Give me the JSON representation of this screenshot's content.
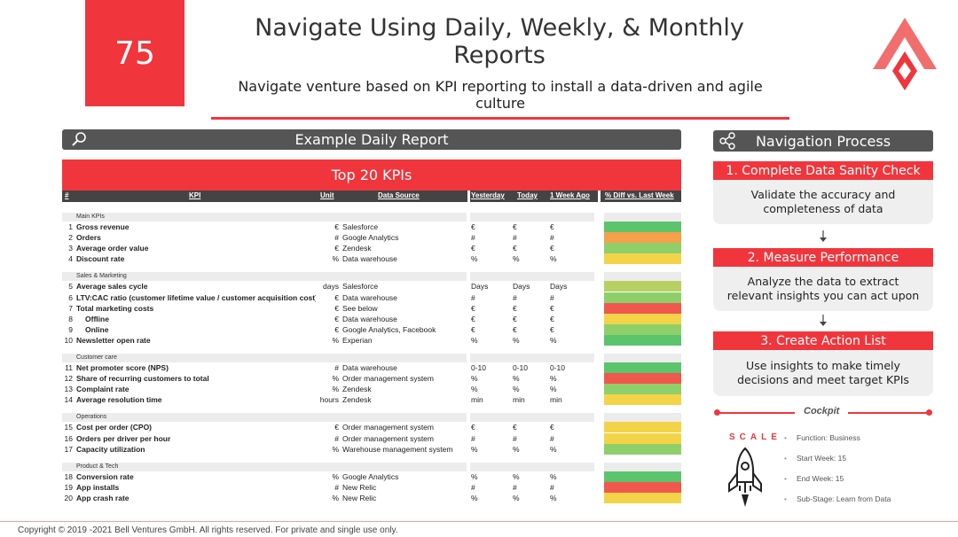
{
  "page": {
    "number": "75",
    "title": "Navigate Using Daily, Weekly, & Monthly Reports",
    "subtitle": "Navigate venture based on KPI reporting to install a data-driven and agile culture"
  },
  "report": {
    "title": "Example Daily Report",
    "icon": "magnifier-icon",
    "banner": "Top 20 KPIs",
    "columns": {
      "num": "#",
      "kpi": "KPI",
      "unit": "Unit",
      "source": "Data Source",
      "yesterday": "Yesterday",
      "today": "Today",
      "week_ago": "1 Week Ago",
      "diff": "% Diff vs. Last Week"
    },
    "sections": [
      {
        "name": "Main KPIs",
        "rows": [
          {
            "num": "1",
            "kpi": "Gross revenue",
            "unit": "€",
            "source": "Salesforce",
            "y": "€",
            "t": "€",
            "w": "€",
            "status": "green"
          },
          {
            "num": "2",
            "kpi": "Orders",
            "unit": "#",
            "source": "Google Analytics",
            "y": "#",
            "t": "#",
            "w": "#",
            "status": "orange"
          },
          {
            "num": "3",
            "kpi": "Average order value",
            "unit": "€",
            "source": "Zendesk",
            "y": "€",
            "t": "€",
            "w": "€",
            "status": "lightgreen"
          },
          {
            "num": "4",
            "kpi": "Discount rate",
            "unit": "%",
            "source": "Data warehouse",
            "y": "%",
            "t": "%",
            "w": "%",
            "status": "yellow"
          }
        ]
      },
      {
        "name": "Sales & Marketing",
        "rows": [
          {
            "num": "5",
            "kpi": "Average sales cycle",
            "unit": "days",
            "source": "Salesforce",
            "y": "Days",
            "t": "Days",
            "w": "Days",
            "status": "olive"
          },
          {
            "num": "6",
            "kpi": "LTV:CAC ratio (customer lifetime value / customer acquisition cost)",
            "unit": "€",
            "source": "Data warehouse",
            "y": "#",
            "t": "#",
            "w": "#",
            "status": "lightgreen"
          },
          {
            "num": "7",
            "kpi": "Total marketing costs",
            "unit": "€",
            "source": "See below",
            "y": "€",
            "t": "€",
            "w": "€",
            "status": "red"
          },
          {
            "num": "8",
            "kpi": "Offline",
            "unit": "€",
            "source": "Data warehouse",
            "y": "€",
            "t": "€",
            "w": "€",
            "status": "yellow",
            "sub": true
          },
          {
            "num": "9",
            "kpi": "Online",
            "unit": "€",
            "source": "Google Analytics, Facebook",
            "y": "€",
            "t": "€",
            "w": "€",
            "status": "lightgreen",
            "sub": true
          },
          {
            "num": "10",
            "kpi": "Newsletter open rate",
            "unit": "%",
            "source": "Experian",
            "y": "%",
            "t": "%",
            "w": "%",
            "status": "green"
          }
        ]
      },
      {
        "name": "Customer care",
        "rows": [
          {
            "num": "11",
            "kpi": "Net promoter score (NPS)",
            "unit": "#",
            "source": "Data warehouse",
            "y": "0-10",
            "t": "0-10",
            "w": "0-10",
            "status": "green"
          },
          {
            "num": "12",
            "kpi": "Share of recurring customers to total",
            "unit": "%",
            "source": "Order management system",
            "y": "%",
            "t": "%",
            "w": "%",
            "status": "red"
          },
          {
            "num": "13",
            "kpi": "Complaint rate",
            "unit": "%",
            "source": "Zendesk",
            "y": "%",
            "t": "%",
            "w": "%",
            "status": "lightgreen"
          },
          {
            "num": "14",
            "kpi": "Average resolution time",
            "unit": "hours",
            "source": "Zendesk",
            "y": "min",
            "t": "min",
            "w": "min",
            "status": "yellow"
          }
        ]
      },
      {
        "name": "Operations",
        "rows": [
          {
            "num": "15",
            "kpi": "Cost per order (CPO)",
            "unit": "€",
            "source": "Order management system",
            "y": "€",
            "t": "€",
            "w": "€",
            "status": "yellow"
          },
          {
            "num": "16",
            "kpi": "Orders per driver per hour",
            "unit": "#",
            "source": "Order management system",
            "y": "#",
            "t": "#",
            "w": "#",
            "status": "yellow"
          },
          {
            "num": "17",
            "kpi": "Capacity utilization",
            "unit": "%",
            "source": "Warehouse management system",
            "y": "%",
            "t": "%",
            "w": "%",
            "status": "lightgreen"
          }
        ]
      },
      {
        "name": "Product & Tech",
        "rows": [
          {
            "num": "18",
            "kpi": "Conversion rate",
            "unit": "%",
            "source": "Google Analytics",
            "y": "%",
            "t": "%",
            "w": "%",
            "status": "green"
          },
          {
            "num": "19",
            "kpi": "App installs",
            "unit": "#",
            "source": "New Relic",
            "y": "#",
            "t": "#",
            "w": "#",
            "status": "red"
          },
          {
            "num": "20",
            "kpi": "App crash rate",
            "unit": "%",
            "source": "New Relic",
            "y": "%",
            "t": "%",
            "w": "%",
            "status": "yellow"
          }
        ]
      }
    ]
  },
  "status_colors": {
    "green": "#5cc46c",
    "lightgreen": "#8fcf6a",
    "olive": "#b6d064",
    "yellow": "#f3d448",
    "orange": "#f6a04a",
    "red": "#f0584e"
  },
  "navigation": {
    "title": "Navigation Process",
    "icon": "share-icon",
    "steps": [
      {
        "title": "1. Complete Data Sanity Check",
        "body": "Validate the accuracy and completeness of data"
      },
      {
        "title": "2. Measure Performance",
        "body": "Analyze the data to extract relevant insights you can act upon"
      },
      {
        "title": "3. Create Action List",
        "body": "Use insights to make timely decisions and meet target KPIs"
      }
    ]
  },
  "cockpit": {
    "label": "Cockpit",
    "stage": "SCALE",
    "items": [
      "Function: Business",
      "Start Week: 15",
      "End Week: 15",
      "Sub-Stage: Learn from Data"
    ]
  },
  "footer": "Copyright © 2019 -2021 Bell Ventures GmbH. All rights reserved. For private and single use only."
}
